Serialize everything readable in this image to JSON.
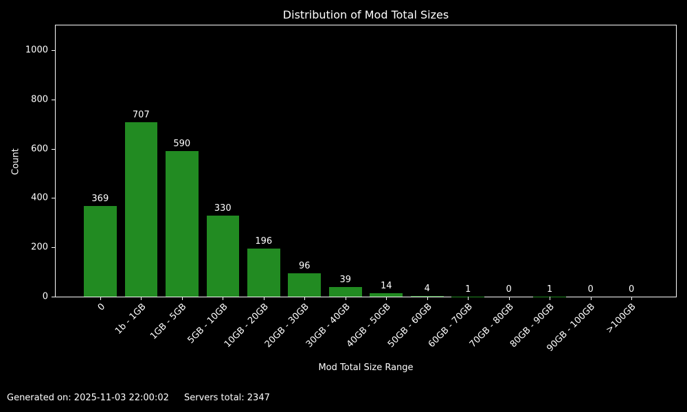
{
  "chart_data": {
    "type": "bar",
    "title": "Distribution of Mod Total Sizes",
    "xlabel": "Mod Total Size Range",
    "ylabel": "Count",
    "categories": [
      "0",
      "1b - 1GB",
      "1GB - 5GB",
      "5GB - 10GB",
      "10GB - 20GB",
      "20GB - 30GB",
      "30GB - 40GB",
      "40GB - 50GB",
      "50GB - 60GB",
      "60GB - 70GB",
      "70GB - 80GB",
      "80GB - 90GB",
      "90GB - 100GB",
      ">100GB"
    ],
    "values": [
      369,
      707,
      590,
      330,
      196,
      96,
      39,
      14,
      4,
      1,
      0,
      1,
      0,
      0
    ],
    "yticks": [
      0,
      200,
      400,
      600,
      800,
      1000
    ],
    "ylim": [
      0,
      1100
    ],
    "bar_color": "#228B22",
    "background_color": "#000000",
    "text_color": "#ffffff",
    "grid": false,
    "legend": null,
    "bar_value_labels_shown": true,
    "xtick_rotation_deg": 45
  },
  "footer": {
    "generated": "Generated on: 2025-11-03 22:00:02",
    "servers_total": "Servers total: 2347"
  }
}
